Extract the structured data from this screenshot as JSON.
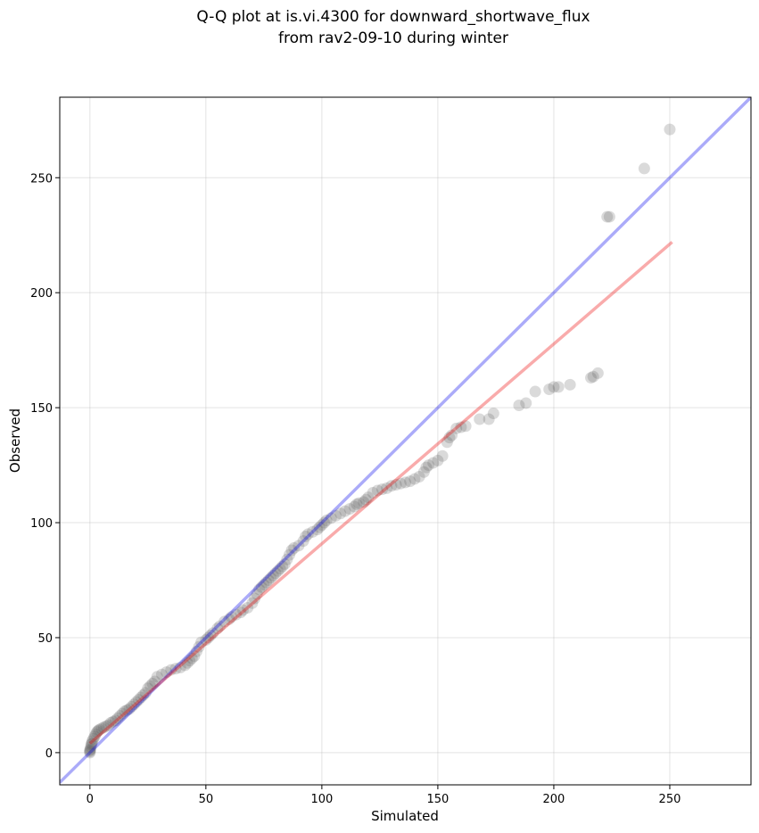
{
  "chart_data": {
    "type": "scatter",
    "title_lines": [
      "Q-Q plot at is.vi.4300 for downward_shortwave_flux",
      "from rav2-09-10 during winter"
    ],
    "xlabel": "Simulated",
    "ylabel": "Observed",
    "xlim": [
      -13,
      285
    ],
    "ylim": [
      -14,
      285
    ],
    "xticks": [
      0,
      50,
      100,
      150,
      200,
      250
    ],
    "yticks": [
      0,
      50,
      100,
      150,
      200,
      250
    ],
    "grid": true,
    "colors": {
      "points": "#555555",
      "one_to_one_line": "#0000ee",
      "fit_line": "#ee0000"
    },
    "one_to_one_line": {
      "x": [
        -13,
        285
      ],
      "y": [
        -13,
        285
      ]
    },
    "fit_line": {
      "x": [
        0,
        251
      ],
      "y": [
        4,
        222
      ]
    },
    "points": [
      [
        0,
        0
      ],
      [
        0,
        0.5
      ],
      [
        0,
        1
      ],
      [
        0.2,
        1.5
      ],
      [
        0.4,
        2.5
      ],
      [
        0.6,
        3.5
      ],
      [
        0.8,
        4
      ],
      [
        1,
        5
      ],
      [
        1.5,
        6
      ],
      [
        2,
        7
      ],
      [
        2.5,
        8
      ],
      [
        3,
        9
      ],
      [
        3.5,
        9.5
      ],
      [
        4,
        10
      ],
      [
        5,
        10.5
      ],
      [
        6,
        11
      ],
      [
        7,
        11.5
      ],
      [
        8,
        12
      ],
      [
        9,
        13
      ],
      [
        10,
        13.5
      ],
      [
        11,
        14
      ],
      [
        12,
        15
      ],
      [
        13,
        16
      ],
      [
        14,
        17
      ],
      [
        15,
        18
      ],
      [
        16,
        18.5
      ],
      [
        17,
        19
      ],
      [
        18,
        20
      ],
      [
        19,
        21
      ],
      [
        20,
        22
      ],
      [
        21,
        23
      ],
      [
        22,
        24
      ],
      [
        23,
        25
      ],
      [
        24,
        26
      ],
      [
        25,
        28
      ],
      [
        26,
        29
      ],
      [
        27,
        30
      ],
      [
        28,
        31
      ],
      [
        29,
        33
      ],
      [
        31,
        34
      ],
      [
        33,
        35
      ],
      [
        35,
        36
      ],
      [
        37,
        36.5
      ],
      [
        39,
        37
      ],
      [
        41,
        38
      ],
      [
        42,
        39
      ],
      [
        43,
        40
      ],
      [
        44,
        41
      ],
      [
        45,
        42
      ],
      [
        46,
        44
      ],
      [
        47,
        46
      ],
      [
        48,
        48
      ],
      [
        50,
        49
      ],
      [
        51,
        50
      ],
      [
        52,
        51
      ],
      [
        53,
        52
      ],
      [
        55,
        54
      ],
      [
        56,
        55
      ],
      [
        58,
        57
      ],
      [
        60,
        58
      ],
      [
        61,
        59
      ],
      [
        63,
        60
      ],
      [
        65,
        61
      ],
      [
        66,
        62
      ],
      [
        68,
        63
      ],
      [
        70,
        65
      ],
      [
        71,
        67
      ],
      [
        72,
        69
      ],
      [
        73,
        71
      ],
      [
        74,
        72
      ],
      [
        75,
        73
      ],
      [
        76,
        74
      ],
      [
        77,
        75
      ],
      [
        78,
        76
      ],
      [
        79,
        77
      ],
      [
        80,
        78
      ],
      [
        81,
        79
      ],
      [
        82,
        80
      ],
      [
        83,
        81
      ],
      [
        84,
        82
      ],
      [
        85,
        84
      ],
      [
        86,
        86
      ],
      [
        87,
        88
      ],
      [
        88,
        89
      ],
      [
        90,
        90
      ],
      [
        92,
        92
      ],
      [
        93,
        94
      ],
      [
        94,
        95
      ],
      [
        96,
        96
      ],
      [
        98,
        97
      ],
      [
        99,
        98
      ],
      [
        100,
        99
      ],
      [
        101,
        100
      ],
      [
        102,
        101
      ],
      [
        104,
        102
      ],
      [
        106,
        103
      ],
      [
        108,
        104
      ],
      [
        110,
        105
      ],
      [
        112,
        106
      ],
      [
        114,
        107
      ],
      [
        115,
        108
      ],
      [
        116,
        108.5
      ],
      [
        118,
        109
      ],
      [
        119,
        110
      ],
      [
        120,
        111
      ],
      [
        122,
        113
      ],
      [
        124,
        114
      ],
      [
        126,
        114.5
      ],
      [
        128,
        115
      ],
      [
        130,
        116
      ],
      [
        132,
        116.5
      ],
      [
        134,
        117
      ],
      [
        136,
        117.5
      ],
      [
        138,
        118
      ],
      [
        140,
        119
      ],
      [
        142,
        120
      ],
      [
        144,
        122
      ],
      [
        145,
        124
      ],
      [
        146,
        125
      ],
      [
        148,
        126
      ],
      [
        150,
        127
      ],
      [
        152,
        129
      ],
      [
        154,
        135
      ],
      [
        155,
        137
      ],
      [
        156,
        138
      ],
      [
        158,
        141
      ],
      [
        160,
        141.5
      ],
      [
        162,
        142
      ],
      [
        168,
        145
      ],
      [
        172,
        145
      ],
      [
        174,
        147.5
      ],
      [
        185,
        151
      ],
      [
        188,
        152
      ],
      [
        192,
        157
      ],
      [
        198,
        158
      ],
      [
        200,
        159
      ],
      [
        202,
        159
      ],
      [
        207,
        160
      ],
      [
        216,
        163
      ],
      [
        217,
        163.5
      ],
      [
        219,
        165
      ],
      [
        223,
        233
      ],
      [
        224,
        233
      ],
      [
        239,
        254
      ],
      [
        250,
        271
      ]
    ]
  }
}
